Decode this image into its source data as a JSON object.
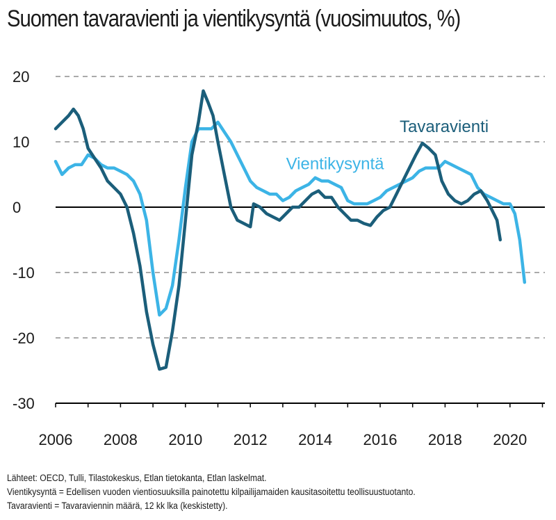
{
  "title": "Suomen tavaravienti ja vientikysyntä (vuosimuutos, %)",
  "notes": [
    "Lähteet: OECD, Tulli, Tilastokeskus, Etlan tietokanta, Etlan laskelmat.",
    "Vientikysyntä = Edellisen vuoden vientiosuuksilla painotettu kilpailijamaiden kausitasoitettu teollisuustuotanto.",
    "Tavaravienti = Tavaraviennin määrä, 12 kk lka (keskistetty)."
  ],
  "colors": {
    "tavaravienti": "#1b5e7a",
    "vientikysynta": "#3cb4e6",
    "grid": "#555555",
    "axis": "#000000"
  },
  "chart_data": {
    "type": "line",
    "ylim": [
      -30,
      20
    ],
    "xlim": [
      2006,
      2021
    ],
    "yticks": [
      20,
      10,
      0,
      -10,
      -20,
      -30
    ],
    "ytick_labels": [
      "20",
      "10",
      "0",
      "-10",
      "-20",
      "-30"
    ],
    "xticks": [
      2006,
      2008,
      2010,
      2012,
      2014,
      2016,
      2018,
      2020
    ],
    "xtick_labels": [
      "2006",
      "2008",
      "2010",
      "2012",
      "2014",
      "2016",
      "2018",
      "2020"
    ],
    "grid": "horizontal dashed",
    "series": [
      {
        "name": "Tavaravienti",
        "color": "#1b5e7a",
        "points": [
          [
            2006.0,
            12
          ],
          [
            2006.2,
            13
          ],
          [
            2006.4,
            14
          ],
          [
            2006.55,
            15
          ],
          [
            2006.7,
            14
          ],
          [
            2006.85,
            12
          ],
          [
            2007.0,
            9
          ],
          [
            2007.2,
            7.5
          ],
          [
            2007.4,
            6
          ],
          [
            2007.6,
            4
          ],
          [
            2007.8,
            3
          ],
          [
            2008.0,
            2
          ],
          [
            2008.2,
            0
          ],
          [
            2008.4,
            -4
          ],
          [
            2008.6,
            -9
          ],
          [
            2008.8,
            -16
          ],
          [
            2009.0,
            -21
          ],
          [
            2009.2,
            -24.8
          ],
          [
            2009.4,
            -24.5
          ],
          [
            2009.6,
            -19
          ],
          [
            2009.8,
            -12
          ],
          [
            2010.0,
            -2
          ],
          [
            2010.2,
            8
          ],
          [
            2010.4,
            13
          ],
          [
            2010.55,
            17.8
          ],
          [
            2010.7,
            16
          ],
          [
            2010.85,
            14
          ],
          [
            2011.0,
            10
          ],
          [
            2011.2,
            5
          ],
          [
            2011.4,
            0
          ],
          [
            2011.6,
            -2
          ],
          [
            2011.8,
            -2.5
          ],
          [
            2012.0,
            -3
          ],
          [
            2012.1,
            0.5
          ],
          [
            2012.3,
            0
          ],
          [
            2012.5,
            -1
          ],
          [
            2012.7,
            -1.5
          ],
          [
            2012.9,
            -2
          ],
          [
            2013.1,
            -1
          ],
          [
            2013.3,
            0
          ],
          [
            2013.5,
            0
          ],
          [
            2013.7,
            1
          ],
          [
            2013.9,
            2
          ],
          [
            2014.1,
            2.5
          ],
          [
            2014.3,
            1.5
          ],
          [
            2014.5,
            1.5
          ],
          [
            2014.7,
            0
          ],
          [
            2014.9,
            -1
          ],
          [
            2015.1,
            -2
          ],
          [
            2015.3,
            -2
          ],
          [
            2015.5,
            -2.5
          ],
          [
            2015.7,
            -2.8
          ],
          [
            2015.9,
            -1.5
          ],
          [
            2016.1,
            -0.5
          ],
          [
            2016.3,
            0
          ],
          [
            2016.5,
            2
          ],
          [
            2016.7,
            4
          ],
          [
            2016.9,
            6
          ],
          [
            2017.1,
            8
          ],
          [
            2017.3,
            9.8
          ],
          [
            2017.5,
            9
          ],
          [
            2017.7,
            8
          ],
          [
            2017.9,
            4
          ],
          [
            2018.1,
            2
          ],
          [
            2018.3,
            1
          ],
          [
            2018.5,
            0.5
          ],
          [
            2018.7,
            1
          ],
          [
            2018.9,
            2
          ],
          [
            2019.1,
            2.5
          ],
          [
            2019.3,
            1
          ],
          [
            2019.5,
            -1
          ],
          [
            2019.6,
            -2
          ],
          [
            2019.7,
            -5
          ]
        ]
      },
      {
        "name": "Vientikysyntä",
        "color": "#3cb4e6",
        "points": [
          [
            2006.0,
            7
          ],
          [
            2006.2,
            5
          ],
          [
            2006.4,
            6
          ],
          [
            2006.6,
            6.5
          ],
          [
            2006.8,
            6.5
          ],
          [
            2007.0,
            8
          ],
          [
            2007.2,
            7.5
          ],
          [
            2007.4,
            6.5
          ],
          [
            2007.6,
            6
          ],
          [
            2007.8,
            6
          ],
          [
            2008.0,
            5.5
          ],
          [
            2008.2,
            5
          ],
          [
            2008.4,
            4
          ],
          [
            2008.6,
            2
          ],
          [
            2008.8,
            -2
          ],
          [
            2009.0,
            -10
          ],
          [
            2009.2,
            -16.5
          ],
          [
            2009.4,
            -15.5
          ],
          [
            2009.6,
            -12
          ],
          [
            2009.8,
            -5
          ],
          [
            2010.0,
            3
          ],
          [
            2010.2,
            10
          ],
          [
            2010.4,
            12
          ],
          [
            2010.6,
            12
          ],
          [
            2010.8,
            12
          ],
          [
            2011.0,
            13
          ],
          [
            2011.2,
            11.5
          ],
          [
            2011.4,
            10
          ],
          [
            2011.6,
            8
          ],
          [
            2011.8,
            6
          ],
          [
            2012.0,
            4
          ],
          [
            2012.2,
            3
          ],
          [
            2012.4,
            2.5
          ],
          [
            2012.6,
            2
          ],
          [
            2012.8,
            2
          ],
          [
            2013.0,
            1
          ],
          [
            2013.2,
            1.5
          ],
          [
            2013.4,
            2.5
          ],
          [
            2013.6,
            3
          ],
          [
            2013.8,
            3.5
          ],
          [
            2014.0,
            4.5
          ],
          [
            2014.2,
            4
          ],
          [
            2014.4,
            4
          ],
          [
            2014.6,
            3.5
          ],
          [
            2014.8,
            3
          ],
          [
            2015.0,
            1
          ],
          [
            2015.2,
            0.5
          ],
          [
            2015.4,
            0.5
          ],
          [
            2015.6,
            0.5
          ],
          [
            2015.8,
            1
          ],
          [
            2016.0,
            1.5
          ],
          [
            2016.2,
            2.5
          ],
          [
            2016.4,
            3
          ],
          [
            2016.6,
            3.5
          ],
          [
            2016.8,
            4
          ],
          [
            2017.0,
            4.5
          ],
          [
            2017.2,
            5.5
          ],
          [
            2017.4,
            6
          ],
          [
            2017.6,
            6
          ],
          [
            2017.8,
            6
          ],
          [
            2018.0,
            7
          ],
          [
            2018.2,
            6.5
          ],
          [
            2018.4,
            6
          ],
          [
            2018.6,
            5.5
          ],
          [
            2018.8,
            5
          ],
          [
            2019.0,
            3
          ],
          [
            2019.2,
            2
          ],
          [
            2019.4,
            1.5
          ],
          [
            2019.6,
            1
          ],
          [
            2019.8,
            0.5
          ],
          [
            2020.0,
            0.5
          ],
          [
            2020.15,
            -1
          ],
          [
            2020.3,
            -5
          ],
          [
            2020.45,
            -11.5
          ]
        ]
      }
    ],
    "annotations": [
      {
        "text": "Tavaravienti",
        "series": "Tavaravienti"
      },
      {
        "text": "Vientikysyntä",
        "series": "Vientikysyntä"
      }
    ]
  }
}
